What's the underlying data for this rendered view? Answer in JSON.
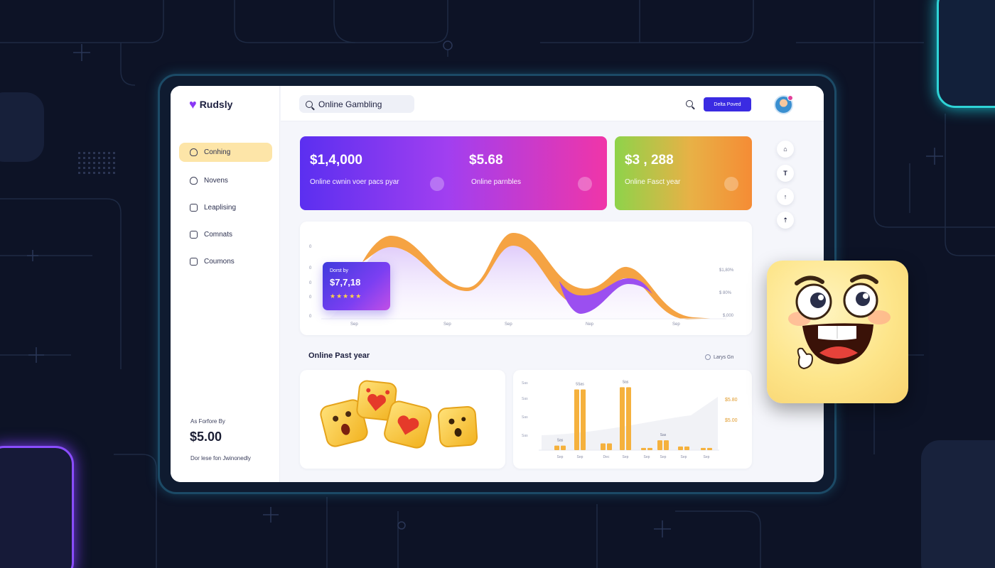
{
  "brand": {
    "name": "Rudsly"
  },
  "search": {
    "value": "Online Gambling"
  },
  "header": {
    "cta_label": "Delta Poved"
  },
  "sidebar": {
    "items": [
      {
        "label": "Conhing",
        "icon": "home-icon",
        "active": true
      },
      {
        "label": "Novens",
        "icon": "bell-icon",
        "active": false
      },
      {
        "label": "Leaplising",
        "icon": "stack-icon",
        "active": false
      },
      {
        "label": "Comnats",
        "icon": "camera-icon",
        "active": false
      },
      {
        "label": "Coumons",
        "icon": "bag-icon",
        "active": false
      }
    ],
    "footer": {
      "caption": "As Forfore By",
      "price": "$5.00",
      "note": "Dor lese fon Jwinonedly"
    }
  },
  "stats": [
    {
      "value": "$1,4,000",
      "label": "Online cwnin voer pacs pyar"
    },
    {
      "value": "$5.68",
      "label": "Online parnbles"
    },
    {
      "value": "$3 , 288",
      "label": "Online Fasct year"
    }
  ],
  "right_actions": [
    {
      "icon": "home-icon",
      "symbol": "⌂"
    },
    {
      "icon": "filter-icon",
      "symbol": "T"
    },
    {
      "icon": "up-arrow-icon",
      "symbol": "↑"
    },
    {
      "icon": "upload-icon",
      "symbol": "⇡"
    }
  ],
  "area_chart": {
    "tooltip": {
      "label": "Dorst by",
      "value": "$7,7,18",
      "stars": "★★★★★"
    },
    "y_ticks_left": [
      "0",
      "0",
      "0",
      "0",
      "0"
    ],
    "y_ticks_right": [
      "$1,80%",
      "$ 80%",
      "$,000"
    ],
    "x_ticks": [
      "Sep",
      "Sep",
      "Sep",
      "Nep",
      "Sep"
    ],
    "colors": {
      "orange": "#f5a343",
      "purple": "#9b4ff0",
      "fill": "#e7d8fb"
    }
  },
  "section": {
    "title": "Online Past year",
    "legend": "Larys Gn"
  },
  "chart_data": {
    "type": "bar",
    "categories": [
      "Sep",
      "Sep",
      "Dec",
      "Sep",
      "Sep",
      "Sep",
      "Sep",
      "Sep"
    ],
    "values": [
      10,
      135,
      15,
      140,
      5,
      22,
      8,
      5
    ],
    "y_tick_labels": [
      "Sas",
      "Sas",
      "Sas",
      "Sas"
    ],
    "value_labels": [
      "Sas",
      "5Sas",
      "",
      "Sas",
      "",
      "Sas",
      "",
      ""
    ],
    "right_labels": [
      "$5.80",
      "$5.00"
    ],
    "color": "#f5b13d"
  }
}
